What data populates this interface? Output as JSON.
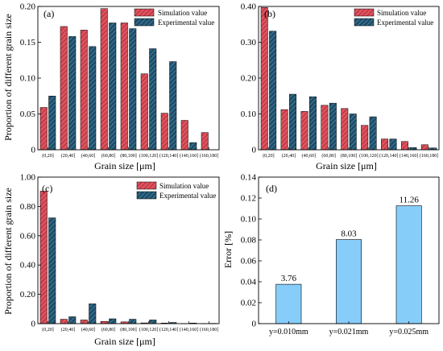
{
  "colors": {
    "simulation": "#e0515d",
    "experimental": "#1d4f6b",
    "error_bar": "#87cdfa",
    "axis": "#000000",
    "background": "#ffffff"
  },
  "chart_data": [
    {
      "panel": "(a)",
      "type": "bar",
      "ylabel": "Proportion of different grain size",
      "xlabel": "Grain size [μm]",
      "categories": [
        "(0,20]",
        "(20,40]",
        "(40,60]",
        "(60,80]",
        "(80,100]",
        "(100,120]",
        "(120,140]",
        "(140,160]",
        "(160,180]"
      ],
      "series": [
        {
          "name": "Simulation value",
          "values": [
            0.059,
            0.172,
            0.167,
            0.197,
            0.177,
            0.106,
            0.051,
            0.041,
            0.024
          ]
        },
        {
          "name": "Experimental value",
          "values": [
            0.075,
            0.158,
            0.144,
            0.177,
            0.169,
            0.141,
            0.123,
            0.01,
            0.0
          ]
        }
      ],
      "ylim": [
        0,
        0.2
      ],
      "yticks": [
        "0",
        "0.05",
        "0.10",
        "0.15",
        "0.20"
      ],
      "ytick_values": [
        0,
        0.05,
        0.1,
        0.15,
        0.2
      ],
      "legend": "top-right"
    },
    {
      "panel": "(b)",
      "type": "bar",
      "ylabel": "",
      "xlabel": "Grain size [μm]",
      "categories": [
        "(0,20]",
        "(20,40]",
        "(40,60]",
        "(60,80]",
        "(80,100]",
        "(100,120]",
        "(120,140]",
        "(140,160]",
        "(160,180]"
      ],
      "series": [
        {
          "name": "Simulation value",
          "values": [
            0.397,
            0.112,
            0.107,
            0.124,
            0.115,
            0.068,
            0.03,
            0.023,
            0.014
          ]
        },
        {
          "name": "Experimental value",
          "values": [
            0.331,
            0.155,
            0.148,
            0.13,
            0.1,
            0.092,
            0.03,
            0.006,
            0.005
          ]
        }
      ],
      "ylim": [
        0,
        0.4
      ],
      "yticks": [
        "0",
        "0.10",
        "0.20",
        "0.30",
        "0.40"
      ],
      "ytick_values": [
        0,
        0.1,
        0.2,
        0.3,
        0.4
      ],
      "legend": "top-right"
    },
    {
      "panel": "(c)",
      "type": "bar",
      "ylabel": "Proportion of different grain size",
      "xlabel": "Grain size [μm]",
      "categories": [
        "(0,20]",
        "(20,40]",
        "(40,60]",
        "(60,80]",
        "(80,100]",
        "(100,120]",
        "(120,140]",
        "(140,160]",
        "(160,180]"
      ],
      "series": [
        {
          "name": "Simulation value",
          "values": [
            0.904,
            0.03,
            0.025,
            0.015,
            0.012,
            0.005,
            0.004,
            0.001,
            0.001
          ]
        },
        {
          "name": "Experimental value",
          "values": [
            0.722,
            0.047,
            0.135,
            0.033,
            0.03,
            0.025,
            0.008,
            0.004,
            0.002
          ]
        }
      ],
      "ylim": [
        0,
        1.0
      ],
      "yticks": [
        "0",
        "0.20",
        "0.40",
        "0.60",
        "0.80",
        "1.00"
      ],
      "ytick_values": [
        0,
        0.2,
        0.4,
        0.6,
        0.8,
        1.0
      ],
      "legend": "top-right"
    },
    {
      "panel": "(d)",
      "type": "bar",
      "ylabel": "Error [%]",
      "xlabel": "",
      "categories": [
        "y=0.010mm",
        "y=0.021mm",
        "y=0.025mm"
      ],
      "values": [
        0.0376,
        0.0803,
        0.1126
      ],
      "data_labels": [
        "3.76",
        "8.03",
        "11.26"
      ],
      "ylim": [
        0,
        0.14
      ],
      "yticks": [
        "0",
        "0.02",
        "0.04",
        "0.06",
        "0.08",
        "0.10",
        "0.12",
        "0.14"
      ],
      "ytick_values": [
        0,
        0.02,
        0.04,
        0.06,
        0.08,
        0.1,
        0.12,
        0.14
      ]
    }
  ]
}
